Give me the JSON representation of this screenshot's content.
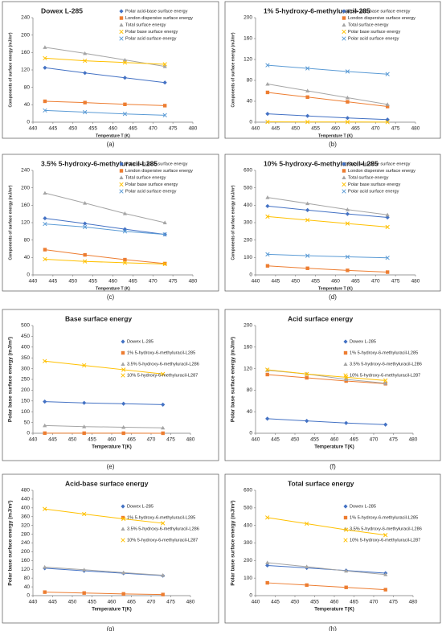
{
  "chart_data": [
    {
      "type": "line",
      "title": "Dowex L-285",
      "caption": "(a)",
      "xlabel": "Temperature T (K)",
      "ylabel": "Components of surface energy (mJ/m²)",
      "x": [
        443,
        453,
        463,
        473
      ],
      "xlim": [
        440,
        480
      ],
      "xticks": [
        440,
        445,
        450,
        455,
        460,
        465,
        470,
        475,
        480
      ],
      "ylim": [
        0,
        240
      ],
      "yticks": [
        0,
        40,
        80,
        120,
        160,
        200,
        240
      ],
      "series": [
        {
          "name": "Polar acid-base surface energy",
          "color": "#4472c4",
          "marker": "diamond",
          "values": [
            125,
            113,
            102,
            91
          ]
        },
        {
          "name": "London dispersive surface energy",
          "color": "#ed7d31",
          "marker": "square",
          "values": [
            48,
            45,
            41,
            38
          ]
        },
        {
          "name": "Total surface energy",
          "color": "#a5a5a5",
          "marker": "triangle",
          "values": [
            172,
            158,
            143,
            128
          ]
        },
        {
          "name": "Polar base surface energy",
          "color": "#ffc000",
          "marker": "x",
          "values": [
            147,
            141,
            137,
            133
          ]
        },
        {
          "name": "Polar acid surface energy",
          "color": "#5b9bd5",
          "marker": "x",
          "values": [
            27,
            23,
            19,
            16
          ]
        }
      ]
    },
    {
      "type": "line",
      "title": "1% 5-hydroxy-6-methyluracil-285",
      "caption": "(b)",
      "xlabel": "Temperature T (K)",
      "ylabel": "Components of surface energy (mJ/m²)",
      "x": [
        443,
        453,
        463,
        473
      ],
      "xlim": [
        440,
        480
      ],
      "xticks": [
        440,
        445,
        450,
        455,
        460,
        465,
        470,
        475,
        480
      ],
      "ylim": [
        0,
        200
      ],
      "yticks": [
        0,
        40,
        80,
        120,
        160,
        200
      ],
      "series": [
        {
          "name": "Polar acid-base surface energy",
          "color": "#4472c4",
          "marker": "diamond",
          "values": [
            16,
            12,
            8,
            5
          ]
        },
        {
          "name": "London dispersive surface energy",
          "color": "#ed7d31",
          "marker": "square",
          "values": [
            57,
            48,
            39,
            30
          ]
        },
        {
          "name": "Total surface energy",
          "color": "#a5a5a5",
          "marker": "triangle",
          "values": [
            73,
            60,
            47,
            34
          ]
        },
        {
          "name": "Polar base surface energy",
          "color": "#ffc000",
          "marker": "x",
          "values": [
            0.5,
            0.4,
            0.3,
            0.2
          ]
        },
        {
          "name": "Polar acid surface energy",
          "color": "#5b9bd5",
          "marker": "x",
          "values": [
            109,
            103,
            97,
            92
          ]
        }
      ]
    },
    {
      "type": "line",
      "title": "3.5% 5-hydroxy-6-methyluracil-L285",
      "caption": "(c)",
      "xlabel": "Temperature T (K)",
      "ylabel": "Components of surface energy (mJ/m²)",
      "x": [
        443,
        453,
        463,
        473
      ],
      "xlim": [
        440,
        480
      ],
      "xticks": [
        440,
        445,
        450,
        455,
        460,
        465,
        470,
        475,
        480
      ],
      "ylim": [
        0,
        240
      ],
      "yticks": [
        0,
        40,
        80,
        120,
        160,
        200,
        240
      ],
      "series": [
        {
          "name": "Polar acid-base surface energy",
          "color": "#4472c4",
          "marker": "diamond",
          "values": [
            130,
            118,
            105,
            93
          ]
        },
        {
          "name": "London dispersive surface energy",
          "color": "#ed7d31",
          "marker": "square",
          "values": [
            58,
            46,
            35,
            26
          ]
        },
        {
          "name": "Total surface energy",
          "color": "#a5a5a5",
          "marker": "triangle",
          "values": [
            188,
            165,
            141,
            120
          ]
        },
        {
          "name": "Polar base surface energy",
          "color": "#ffc000",
          "marker": "x",
          "values": [
            36,
            31,
            28,
            25
          ]
        },
        {
          "name": "Polar acid surface energy",
          "color": "#5b9bd5",
          "marker": "x",
          "values": [
            117,
            110,
            100,
            93
          ]
        }
      ]
    },
    {
      "type": "line",
      "title": "10% 5-hydroxy-6-methyluracil-L285",
      "caption": "(d)",
      "xlabel": "Temperature T (K)",
      "ylabel": "Components of surface energy (mJ/m²)",
      "x": [
        443,
        453,
        463,
        473
      ],
      "xlim": [
        440,
        480
      ],
      "xticks": [
        440,
        445,
        450,
        455,
        460,
        465,
        470,
        475,
        480
      ],
      "ylim": [
        0,
        600
      ],
      "yticks": [
        0,
        100,
        200,
        300,
        400,
        500,
        600
      ],
      "series": [
        {
          "name": "Polar acid-base surface energy",
          "color": "#4472c4",
          "marker": "diamond",
          "values": [
            395,
            372,
            350,
            330
          ]
        },
        {
          "name": "London dispersive surface energy",
          "color": "#ed7d31",
          "marker": "square",
          "values": [
            52,
            38,
            26,
            16
          ]
        },
        {
          "name": "Total surface energy",
          "color": "#a5a5a5",
          "marker": "triangle",
          "values": [
            445,
            410,
            375,
            345
          ]
        },
        {
          "name": "Polar base surface energy",
          "color": "#ffc000",
          "marker": "x",
          "values": [
            335,
            315,
            295,
            275
          ]
        },
        {
          "name": "Polar acid surface energy",
          "color": "#5b9bd5",
          "marker": "x",
          "values": [
            118,
            110,
            104,
            98
          ]
        }
      ]
    },
    {
      "type": "line",
      "title": "Base surface energy",
      "caption": "(e)",
      "xlabel": "Temperature T(K)",
      "ylabel": "Polar base surface energy (mJ/m²)",
      "x": [
        443,
        453,
        463,
        473
      ],
      "xlim": [
        440,
        480
      ],
      "xticks": [
        440,
        445,
        450,
        455,
        460,
        465,
        470,
        475,
        480
      ],
      "ylim": [
        0,
        500
      ],
      "yticks": [
        0,
        50,
        100,
        150,
        200,
        250,
        300,
        350,
        400,
        450,
        500
      ],
      "series": [
        {
          "name": "Dowex L-285",
          "color": "#4472c4",
          "marker": "diamond",
          "values": [
            147,
            141,
            137,
            133
          ]
        },
        {
          "name": "1% 5-hydroxy-6-methyluracil-L285",
          "color": "#ed7d31",
          "marker": "square",
          "values": [
            0.5,
            0.4,
            0.3,
            0.2
          ]
        },
        {
          "name": "3.5% 5-hydroxy-6-methyluracil-L286",
          "color": "#a5a5a5",
          "marker": "triangle",
          "values": [
            36,
            31,
            28,
            25
          ]
        },
        {
          "name": "10% 5-hydroxy-6-methyluracil-L287",
          "color": "#ffc000",
          "marker": "x",
          "values": [
            335,
            315,
            295,
            275
          ]
        }
      ]
    },
    {
      "type": "line",
      "title": "Acid surface energy",
      "caption": "(f)",
      "xlabel": "Temperature T(K)",
      "ylabel": "Polar base surface energy (mJ/m²)",
      "x": [
        443,
        453,
        463,
        473
      ],
      "xlim": [
        440,
        480
      ],
      "xticks": [
        440,
        445,
        450,
        455,
        460,
        465,
        470,
        475,
        480
      ],
      "ylim": [
        0,
        200
      ],
      "yticks": [
        0,
        40,
        80,
        120,
        160,
        200
      ],
      "series": [
        {
          "name": "Dowex L-285",
          "color": "#4472c4",
          "marker": "diamond",
          "values": [
            27,
            23,
            19,
            16
          ]
        },
        {
          "name": "1% 5-hydroxy-6-methyluracil-L285",
          "color": "#ed7d31",
          "marker": "square",
          "values": [
            109,
            103,
            97,
            92
          ]
        },
        {
          "name": "3.5% 5-hydroxy-6-methyluracil-L286",
          "color": "#a5a5a5",
          "marker": "triangle",
          "values": [
            117,
            110,
            100,
            93
          ]
        },
        {
          "name": "10% 5-hydroxy-6-methyluracil-L287",
          "color": "#ffc000",
          "marker": "x",
          "values": [
            118,
            110,
            104,
            98
          ]
        }
      ]
    },
    {
      "type": "line",
      "title": "Acid-base surface energy",
      "caption": "(g)",
      "xlabel": "Temperature T(K)",
      "ylabel": "Polar base surface energy (mJ/m²)",
      "x": [
        443,
        453,
        463,
        473
      ],
      "xlim": [
        440,
        480
      ],
      "xticks": [
        440,
        445,
        450,
        455,
        460,
        465,
        470,
        475,
        480
      ],
      "ylim": [
        0,
        480
      ],
      "yticks": [
        0,
        40,
        80,
        120,
        160,
        200,
        240,
        280,
        320,
        360,
        400,
        440,
        480
      ],
      "series": [
        {
          "name": "Dowex L-285",
          "color": "#4472c4",
          "marker": "diamond",
          "values": [
            125,
            113,
            102,
            91
          ]
        },
        {
          "name": "1% 5-hydroxy-6-methyluracil-L285",
          "color": "#ed7d31",
          "marker": "square",
          "values": [
            16,
            12,
            8,
            5
          ]
        },
        {
          "name": "3.5% 5-hydroxy-6-methyluracil-L286",
          "color": "#a5a5a5",
          "marker": "triangle",
          "values": [
            130,
            118,
            105,
            93
          ]
        },
        {
          "name": "10% 5-hydroxy-6-methyluracil-L287",
          "color": "#ffc000",
          "marker": "x",
          "values": [
            395,
            372,
            350,
            330
          ]
        }
      ]
    },
    {
      "type": "line",
      "title": "Total surface energy",
      "caption": "(h)",
      "xlabel": "Temperature T(K)",
      "ylabel": "Polar base surface energy (mJ/m²)",
      "x": [
        443,
        453,
        463,
        473
      ],
      "xlim": [
        440,
        480
      ],
      "xticks": [
        440,
        445,
        450,
        455,
        460,
        465,
        470,
        475,
        480
      ],
      "ylim": [
        0,
        600
      ],
      "yticks": [
        0,
        100,
        200,
        300,
        400,
        500,
        600
      ],
      "series": [
        {
          "name": "Dowex L-285",
          "color": "#4472c4",
          "marker": "diamond",
          "values": [
            172,
            158,
            143,
            128
          ]
        },
        {
          "name": "1% 5-hydroxy-6-methyluracil-L285",
          "color": "#ed7d31",
          "marker": "square",
          "values": [
            73,
            60,
            47,
            34
          ]
        },
        {
          "name": "3.5% 5-hydroxy-6-methyluracil-L286",
          "color": "#a5a5a5",
          "marker": "triangle",
          "values": [
            188,
            165,
            141,
            120
          ]
        },
        {
          "name": "10% 5-hydroxy-6-methyluracil-L287",
          "color": "#ffc000",
          "marker": "x",
          "values": [
            445,
            410,
            375,
            345
          ]
        }
      ]
    }
  ]
}
